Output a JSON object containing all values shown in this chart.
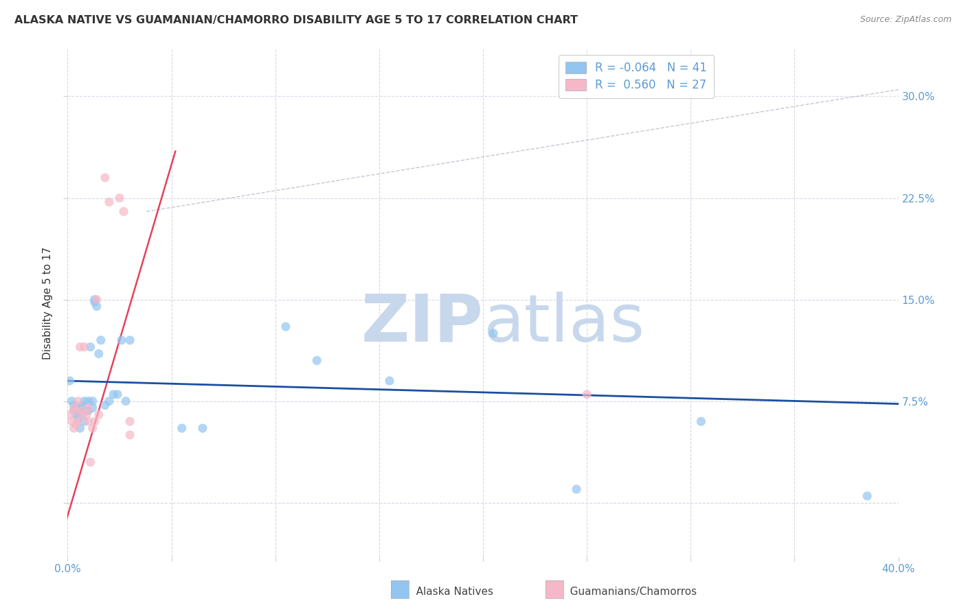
{
  "title": "ALASKA NATIVE VS GUAMANIAN/CHAMORRO DISABILITY AGE 5 TO 17 CORRELATION CHART",
  "source": "Source: ZipAtlas.com",
  "ylabel": "Disability Age 5 to 17",
  "ytick_labels": [
    "",
    "7.5%",
    "15.0%",
    "22.5%",
    "30.0%"
  ],
  "ytick_values": [
    0,
    0.075,
    0.15,
    0.225,
    0.3
  ],
  "xlim": [
    0.0,
    0.4
  ],
  "ylim": [
    -0.04,
    0.335
  ],
  "legend_r_blue": "R = -0.064",
  "legend_n_blue": "N = 41",
  "legend_r_pink": "R =  0.560",
  "legend_n_pink": "N = 27",
  "blue_scatter_x": [
    0.001,
    0.002,
    0.003,
    0.003,
    0.004,
    0.004,
    0.005,
    0.005,
    0.006,
    0.006,
    0.007,
    0.007,
    0.008,
    0.008,
    0.009,
    0.01,
    0.01,
    0.011,
    0.012,
    0.012,
    0.013,
    0.013,
    0.014,
    0.015,
    0.016,
    0.018,
    0.02,
    0.022,
    0.024,
    0.026,
    0.028,
    0.03,
    0.055,
    0.065,
    0.105,
    0.12,
    0.155,
    0.205,
    0.245,
    0.305,
    0.385
  ],
  "blue_scatter_y": [
    0.09,
    0.075,
    0.072,
    0.068,
    0.065,
    0.07,
    0.068,
    0.062,
    0.07,
    0.055,
    0.072,
    0.065,
    0.06,
    0.075,
    0.068,
    0.068,
    0.075,
    0.115,
    0.07,
    0.075,
    0.15,
    0.148,
    0.145,
    0.11,
    0.12,
    0.072,
    0.075,
    0.08,
    0.08,
    0.12,
    0.075,
    0.12,
    0.055,
    0.055,
    0.13,
    0.105,
    0.09,
    0.125,
    0.01,
    0.06,
    0.005
  ],
  "pink_scatter_x": [
    0.001,
    0.002,
    0.003,
    0.003,
    0.004,
    0.004,
    0.005,
    0.005,
    0.006,
    0.007,
    0.007,
    0.008,
    0.009,
    0.01,
    0.01,
    0.011,
    0.012,
    0.013,
    0.014,
    0.015,
    0.018,
    0.02,
    0.025,
    0.027,
    0.03,
    0.03,
    0.25
  ],
  "pink_scatter_y": [
    0.065,
    0.06,
    0.055,
    0.07,
    0.058,
    0.068,
    0.06,
    0.075,
    0.115,
    0.065,
    0.068,
    0.115,
    0.065,
    0.07,
    0.06,
    0.03,
    0.055,
    0.06,
    0.15,
    0.065,
    0.24,
    0.222,
    0.225,
    0.215,
    0.05,
    0.06,
    0.08
  ],
  "blue_line_x": [
    0.0,
    0.4
  ],
  "blue_line_y": [
    0.09,
    0.073
  ],
  "pink_line_x": [
    -0.002,
    0.052
  ],
  "pink_line_y": [
    -0.02,
    0.26
  ],
  "diag_line_x": [
    0.038,
    0.4
  ],
  "diag_line_y": [
    0.215,
    0.305
  ],
  "background_color": "#ffffff",
  "blue_color": "#92C5F0",
  "pink_color": "#F5B8C8",
  "blue_line_color": "#1A4FA0",
  "pink_line_color": "#E8405A",
  "grid_color": "#d8d8e8",
  "title_color": "#333333",
  "axis_label_color": "#5B9BD5",
  "watermark_color": "#C8D8EC",
  "scatter_size": 90
}
